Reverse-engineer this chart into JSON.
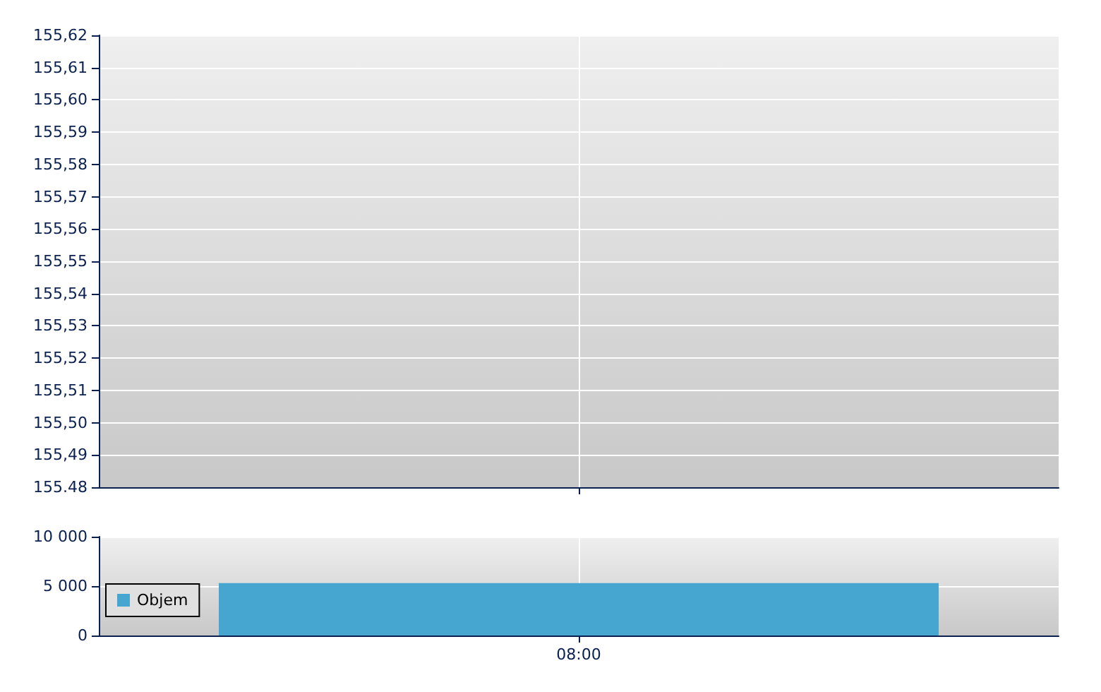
{
  "chart_data": [
    {
      "type": "line",
      "categories": [
        null
      ],
      "series": [
        {
          "values": [
            null
          ]
        }
      ],
      "ylim": [
        155.48,
        155.62
      ],
      "yticks": [
        {
          "value": 155.48,
          "label": "155.48"
        },
        {
          "value": 155.49,
          "label": "155,49"
        },
        {
          "value": 155.5,
          "label": "155,50"
        },
        {
          "value": 155.51,
          "label": "155,51"
        },
        {
          "value": 155.52,
          "label": "155,52"
        },
        {
          "value": 155.53,
          "label": "155,53"
        },
        {
          "value": 155.54,
          "label": "155,54"
        },
        {
          "value": 155.55,
          "label": "155,55"
        },
        {
          "value": 155.56,
          "label": "155,56"
        },
        {
          "value": 155.57,
          "label": "155,57"
        },
        {
          "value": 155.58,
          "label": "155,58"
        },
        {
          "value": 155.59,
          "label": "155,59"
        },
        {
          "value": 155.6,
          "label": "155,60"
        },
        {
          "value": 155.61,
          "label": "155,61"
        },
        {
          "value": 155.62,
          "label": "155,62"
        }
      ],
      "grid": true,
      "tick_labels": "y"
    },
    {
      "type": "bar",
      "categories": [
        "08:00"
      ],
      "series": [
        {
          "name": "Objem",
          "color": "#46a6cf",
          "values": [
            5300
          ]
        }
      ],
      "ylim": [
        0,
        10000
      ],
      "yticks": [
        {
          "value": 0,
          "label": "0"
        },
        {
          "value": 5000,
          "label": "5 000"
        },
        {
          "value": 10000,
          "label": "10 000"
        }
      ],
      "grid": true,
      "legend": "left"
    }
  ]
}
